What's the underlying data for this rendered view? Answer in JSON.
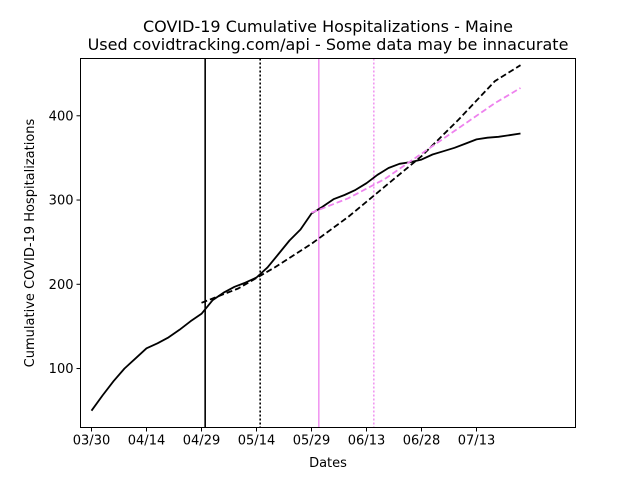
{
  "chart_data": {
    "type": "line",
    "title": "COVID-19 Cumulative Hospitalizations - Maine",
    "subtitle": "Used covidtracking.com/api - Some data may be innacurate",
    "xlabel": "Dates",
    "ylabel": "Cumulative COVID-19 Hospitalizations",
    "x_ticks": [
      "03/30",
      "04/14",
      "04/29",
      "05/14",
      "05/29",
      "06/13",
      "06/28",
      "07/13"
    ],
    "y_ticks": [
      100,
      200,
      300,
      400
    ],
    "xlim": [
      "03/27",
      "08/09"
    ],
    "ylim": [
      30,
      468
    ],
    "grid": false,
    "series": [
      {
        "style": "solid",
        "color": "#000000",
        "x": [
          "03/30",
          "04/02",
          "04/05",
          "04/08",
          "04/11",
          "04/14",
          "04/17",
          "04/20",
          "04/23",
          "04/26",
          "04/29",
          "05/02",
          "05/05",
          "05/08",
          "05/11",
          "05/14",
          "05/17",
          "05/20",
          "05/23",
          "05/26",
          "05/29",
          "06/01",
          "06/04",
          "06/07",
          "06/10",
          "06/13",
          "06/16",
          "06/19",
          "06/22",
          "06/25",
          "06/28",
          "07/01",
          "07/04",
          "07/07",
          "07/10",
          "07/13",
          "07/16",
          "07/19",
          "07/22",
          "07/25"
        ],
        "y": [
          50,
          68,
          85,
          100,
          112,
          124,
          130,
          137,
          146,
          156,
          165,
          181,
          190,
          197,
          202,
          208,
          220,
          236,
          252,
          265,
          284,
          292,
          301,
          306,
          312,
          320,
          330,
          338,
          343,
          345,
          348,
          354,
          358,
          362,
          367,
          372,
          374,
          375,
          377,
          379
        ]
      },
      {
        "style": "dashed",
        "color": "#000000",
        "x": [
          "04/29",
          "05/09",
          "05/19",
          "05/29",
          "06/08",
          "06/18",
          "06/28",
          "07/08",
          "07/18",
          "07/25"
        ],
        "y": [
          178,
          195,
          220,
          248,
          280,
          316,
          352,
          395,
          441,
          460
        ]
      },
      {
        "style": "dashed",
        "color": "#ee82ee",
        "x": [
          "05/29",
          "06/08",
          "06/18",
          "06/28",
          "07/08",
          "07/18",
          "07/25"
        ],
        "y": [
          285,
          302,
          325,
          355,
          385,
          415,
          433
        ]
      }
    ],
    "vlines": [
      {
        "x": "04/30",
        "style": "solid",
        "color": "#000000"
      },
      {
        "x": "05/15",
        "style": "dotted",
        "color": "#000000"
      },
      {
        "x": "05/31",
        "style": "solid",
        "color": "#ee82ee"
      },
      {
        "x": "06/15",
        "style": "dotted",
        "color": "#ee82ee"
      }
    ]
  }
}
